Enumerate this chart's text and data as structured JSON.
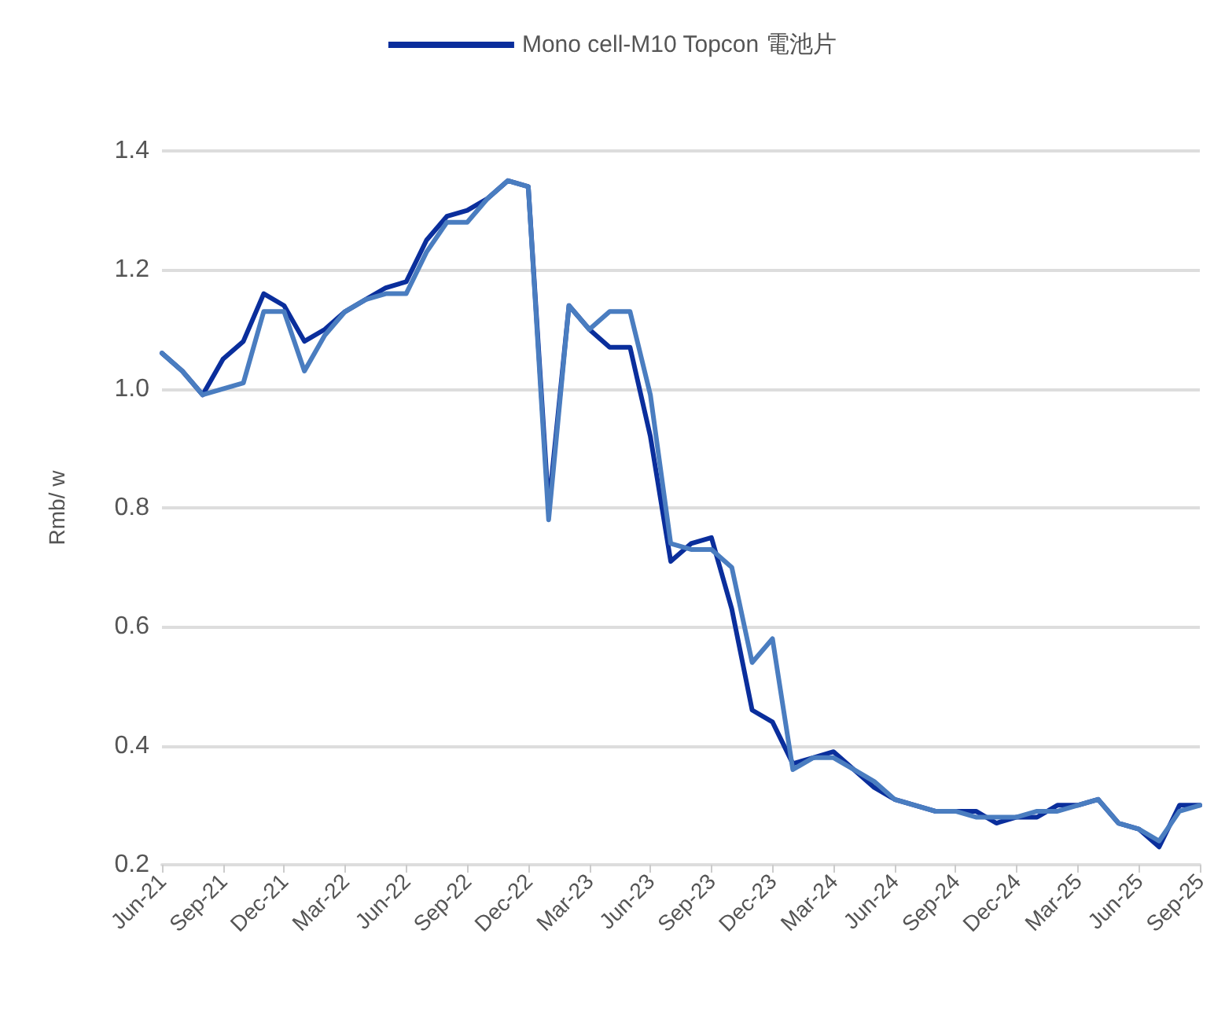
{
  "chart_data": {
    "type": "line",
    "ylabel": "Rmb/ w",
    "categories": [
      "Jun-21",
      null,
      null,
      "Sep-21",
      null,
      null,
      "Dec-21",
      null,
      null,
      "Mar-22",
      null,
      null,
      "Jun-22",
      null,
      null,
      "Sep-22",
      null,
      null,
      "Dec-22",
      null,
      null,
      "Mar-23",
      null,
      null,
      "Jun-23",
      null,
      null,
      "Sep-23",
      null,
      null,
      "Dec-23",
      null,
      null,
      "Mar-24",
      null,
      null,
      "Jun-24",
      null,
      null,
      "Sep-24",
      null,
      null,
      "Dec-24",
      null,
      null,
      "Mar-25",
      null,
      null,
      "Jun-25",
      null,
      null,
      "Sep-25"
    ],
    "series": [
      {
        "name": "Mono cell-M10 Topcon 電池片",
        "color": "#0a2e9c",
        "values": [
          1.06,
          1.03,
          0.99,
          1.05,
          1.08,
          1.16,
          1.14,
          1.08,
          1.1,
          1.13,
          1.15,
          1.17,
          1.18,
          1.25,
          1.29,
          1.3,
          1.32,
          1.35,
          1.34,
          0.8,
          1.14,
          1.1,
          1.07,
          1.07,
          0.92,
          0.71,
          0.74,
          0.75,
          0.63,
          0.46,
          0.44,
          0.37,
          0.38,
          0.39,
          0.36,
          0.33,
          0.31,
          0.3,
          0.29,
          0.29,
          0.29,
          0.27,
          0.28,
          0.28,
          0.3,
          0.3,
          0.31,
          0.27,
          0.26,
          0.23,
          0.3,
          0.3
        ]
      },
      {
        "color": "#4a7dc0",
        "values": [
          1.06,
          1.03,
          0.99,
          1.0,
          1.01,
          1.13,
          1.13,
          1.03,
          1.09,
          1.13,
          1.15,
          1.16,
          1.16,
          1.23,
          1.28,
          1.28,
          1.32,
          1.35,
          1.34,
          0.78,
          1.14,
          1.1,
          1.13,
          1.13,
          0.99,
          0.74,
          0.73,
          0.73,
          0.7,
          0.54,
          0.58,
          0.36,
          0.38,
          0.38,
          0.36,
          0.34,
          0.31,
          0.3,
          0.29,
          0.29,
          0.28,
          0.28,
          0.28,
          0.29,
          0.29,
          0.3,
          0.31,
          0.27,
          0.26,
          0.24,
          0.29,
          0.3
        ]
      }
    ],
    "ylim": [
      0.2,
      1.4
    ],
    "yticks": [
      0.2,
      0.4,
      0.6,
      0.8,
      {
        "value": 1,
        "label": "1.0"
      },
      1.2,
      1.4
    ],
    "grid": "y",
    "legend": "top",
    "marker": "none",
    "line_style": "solid"
  }
}
